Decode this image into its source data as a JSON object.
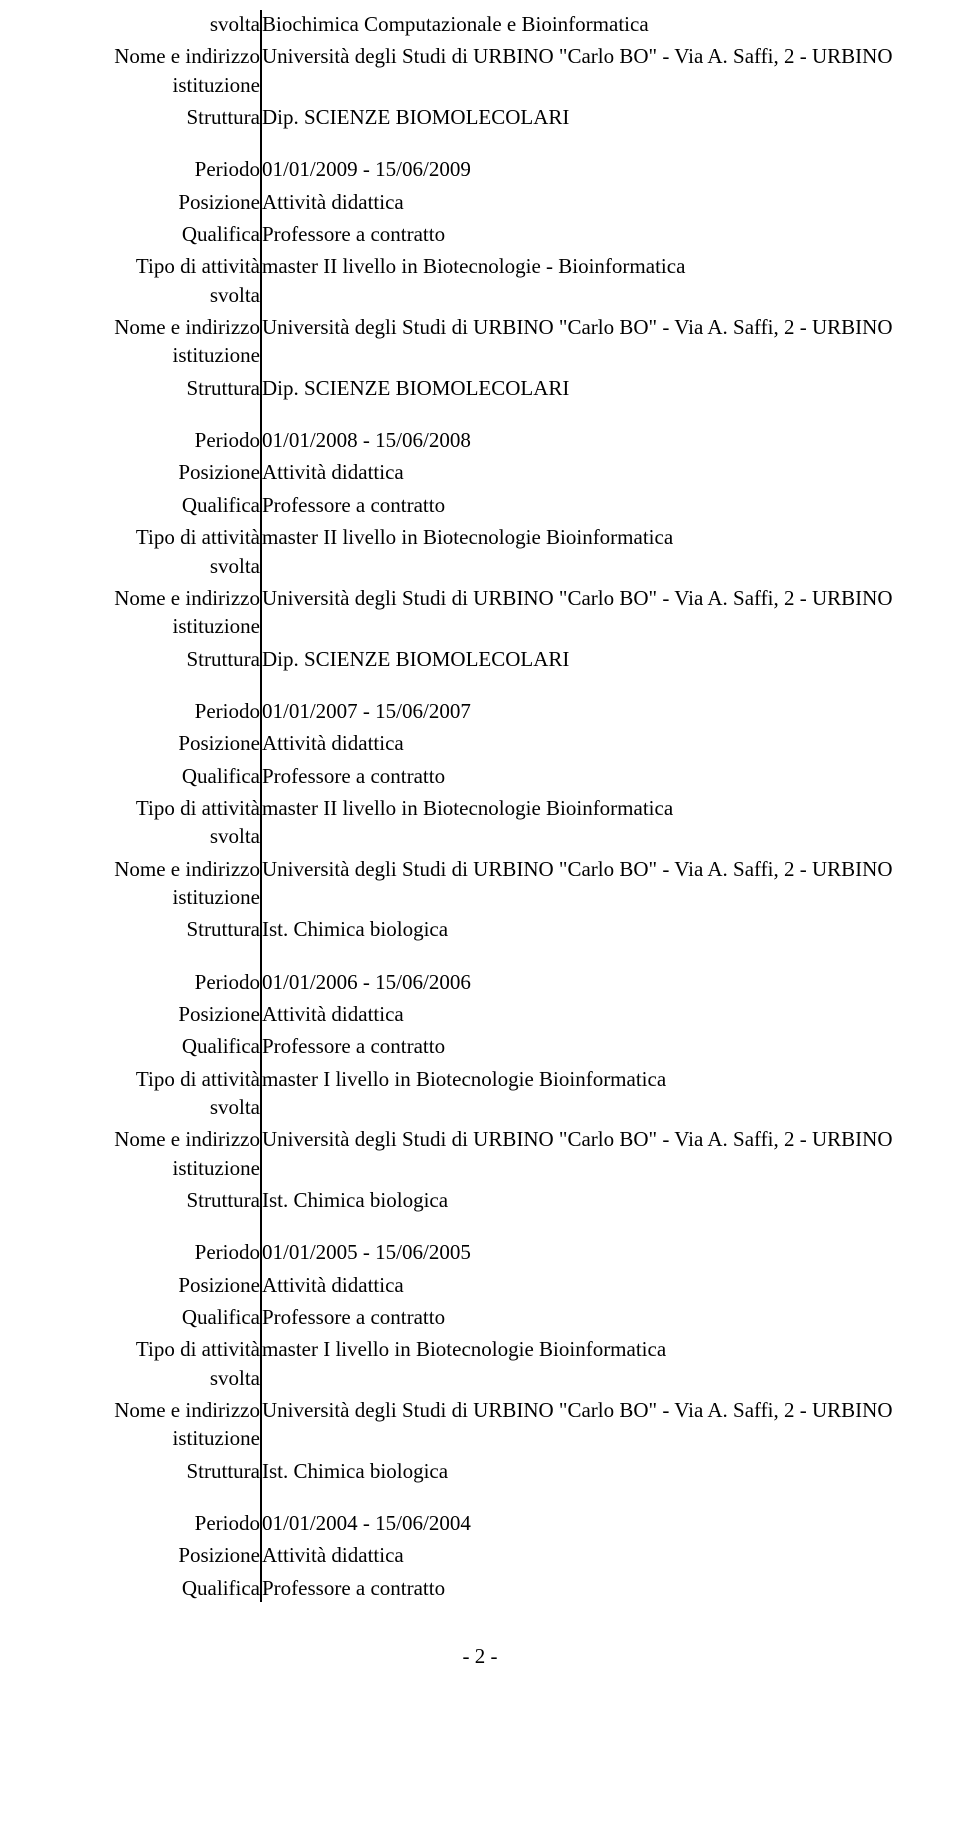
{
  "labels": {
    "svolta": "svolta",
    "nome_indirizzo": "Nome e indirizzo",
    "istituzione": "istituzione",
    "struttura": "Struttura",
    "periodo": "Periodo",
    "posizione": "Posizione",
    "qualifica": "Qualifica",
    "tipo_attivita": "Tipo di attività"
  },
  "top": {
    "svolta_val": "Biochimica Computazionale e Bioinformatica",
    "indirizzo_val": "Università degli Studi di URBINO \"Carlo BO\" - Via A. Saffi, 2 - URBINO",
    "struttura_val": "Dip. SCIENZE BIOMOLECOLARI"
  },
  "b1": {
    "periodo": "01/01/2009 - 15/06/2009",
    "posizione": "Attività didattica",
    "qualifica": "Professore a contratto",
    "tipo_attivita": "master II livello in Biotecnologie - Bioinformatica",
    "indirizzo": "Università degli Studi di URBINO \"Carlo BO\" - Via A. Saffi, 2 - URBINO",
    "struttura": "Dip. SCIENZE BIOMOLECOLARI"
  },
  "b2": {
    "periodo": "01/01/2008 - 15/06/2008",
    "posizione": "Attività didattica",
    "qualifica": "Professore a contratto",
    "tipo_attivita": "master II livello in Biotecnologie Bioinformatica",
    "indirizzo": "Università degli Studi di URBINO \"Carlo BO\" - Via A. Saffi, 2 - URBINO",
    "struttura": "Dip. SCIENZE BIOMOLECOLARI"
  },
  "b3": {
    "periodo": "01/01/2007 - 15/06/2007",
    "posizione": "Attività didattica",
    "qualifica": "Professore a contratto",
    "tipo_attivita": "master II livello in Biotecnologie Bioinformatica",
    "indirizzo": "Università degli Studi di URBINO \"Carlo BO\" - Via A. Saffi, 2 - URBINO",
    "struttura": "Ist. Chimica biologica"
  },
  "b4": {
    "periodo": "01/01/2006 - 15/06/2006",
    "posizione": "Attività didattica",
    "qualifica": "Professore a contratto",
    "tipo_attivita": "master I livello in Biotecnologie Bioinformatica",
    "indirizzo": "Università degli Studi di URBINO \"Carlo BO\" - Via A. Saffi, 2 - URBINO",
    "struttura": "Ist. Chimica biologica"
  },
  "b5": {
    "periodo": "01/01/2005 - 15/06/2005",
    "posizione": "Attività didattica",
    "qualifica": "Professore a contratto",
    "tipo_attivita": "master I livello in Biotecnologie Bioinformatica",
    "indirizzo": "Università degli Studi di URBINO \"Carlo BO\" - Via A. Saffi, 2 - URBINO",
    "struttura": "Ist. Chimica biologica"
  },
  "b6": {
    "periodo": "01/01/2004 - 15/06/2004",
    "posizione": "Attività didattica",
    "qualifica": "Professore a contratto"
  },
  "page_number": "- 2 -"
}
